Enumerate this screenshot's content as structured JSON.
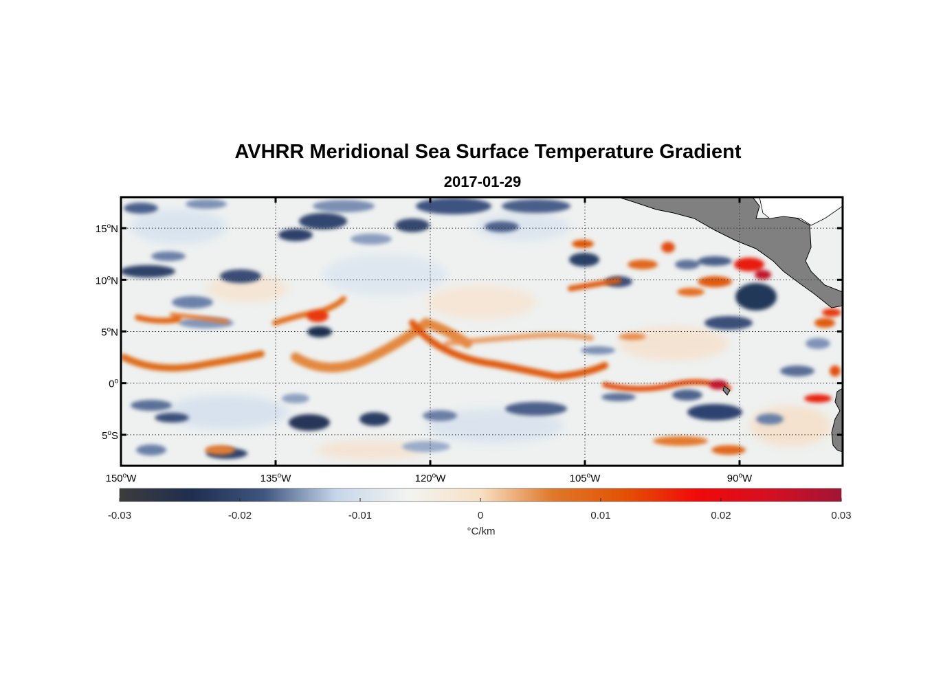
{
  "title": "AVHRR Meridional Sea Surface Temperature Gradient",
  "subtitle": "2017-01-29",
  "map": {
    "lon_range": [
      -150,
      -80
    ],
    "lat_range": [
      -8,
      18
    ],
    "lon_ticks": [
      {
        "value": -150,
        "num": "150",
        "hemi": "W"
      },
      {
        "value": -135,
        "num": "135",
        "hemi": "W"
      },
      {
        "value": -120,
        "num": "120",
        "hemi": "W"
      },
      {
        "value": -105,
        "num": "105",
        "hemi": "W"
      },
      {
        "value": -90,
        "num": "90",
        "hemi": "W"
      }
    ],
    "lat_ticks": [
      {
        "value": 15,
        "num": "15",
        "hemi": "N"
      },
      {
        "value": 10,
        "num": "10",
        "hemi": "N"
      },
      {
        "value": 5,
        "num": "5",
        "hemi": "N"
      },
      {
        "value": 0,
        "num": "0",
        "hemi": ""
      },
      {
        "value": -5,
        "num": "5",
        "hemi": "S"
      }
    ],
    "grid": "dotted",
    "land_color": "#808080"
  },
  "colorbar": {
    "min": -0.03,
    "max": 0.03,
    "ticks": [
      "-0.03",
      "-0.02",
      "-0.01",
      "0",
      "0.01",
      "0.02",
      "0.03"
    ],
    "label": "°C/km",
    "colormap": [
      "#3c3c3c",
      "#1f2e50",
      "#3f5680",
      "#c6d6ea",
      "#f3f4f1",
      "#f7e0c4",
      "#e0782a",
      "#e35204",
      "#f00a0a",
      "#d50f22",
      "#a11535"
    ]
  }
}
